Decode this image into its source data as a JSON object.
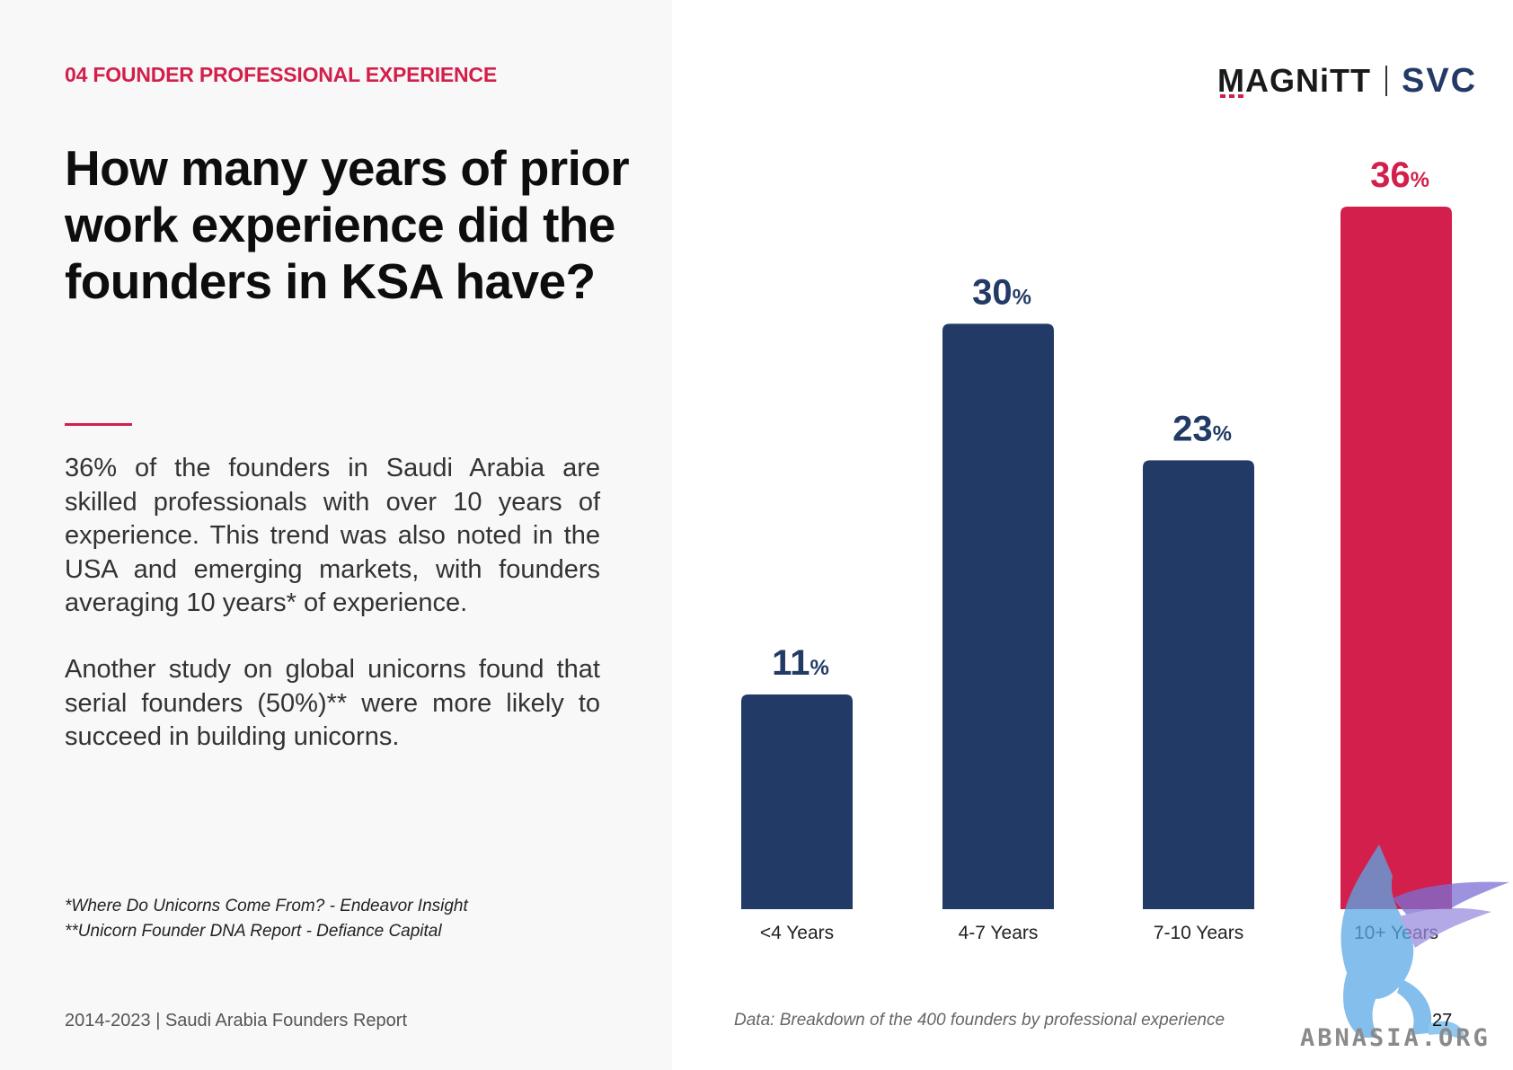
{
  "section_label": "04 FOUNDER PROFESSIONAL EXPERIENCE",
  "headline": "How many years of prior work experience did the founders in KSA have?",
  "paragraphs": [
    "36% of the founders in Saudi Arabia are skilled professionals with over 10 years of experience. This trend was also noted in the USA and emerging markets, with founders averaging 10 years* of experience.",
    "Another study on global unicorns found that serial founders (50%)** were more likely to succeed in building unicorns."
  ],
  "footnotes": [
    "*Where Do Unicorns Come From? - Endeavor Insight",
    "**Unicorn Founder DNA Report - Defiance Capital"
  ],
  "report_footer": "2014-2023 | Saudi Arabia Founders Report",
  "logo": {
    "primary": "MAGNiTT",
    "secondary": "SVC"
  },
  "chart_caption": "Data: Breakdown of the 400 founders by professional experience",
  "page_number": "27",
  "watermark": "ABNASIA.ORG",
  "colors": {
    "navy": "#223a66",
    "accent": "#d21f4b"
  },
  "chart_data": {
    "type": "bar",
    "categories": [
      "<4 Years",
      "4-7 Years",
      "7-10 Years",
      "10+ Years"
    ],
    "values": [
      11,
      30,
      23,
      36
    ],
    "value_suffix": "%",
    "highlight_index": 3,
    "ylim": [
      0,
      36
    ],
    "grid": false,
    "legend": "none",
    "title": "",
    "xlabel": "",
    "ylabel": ""
  }
}
